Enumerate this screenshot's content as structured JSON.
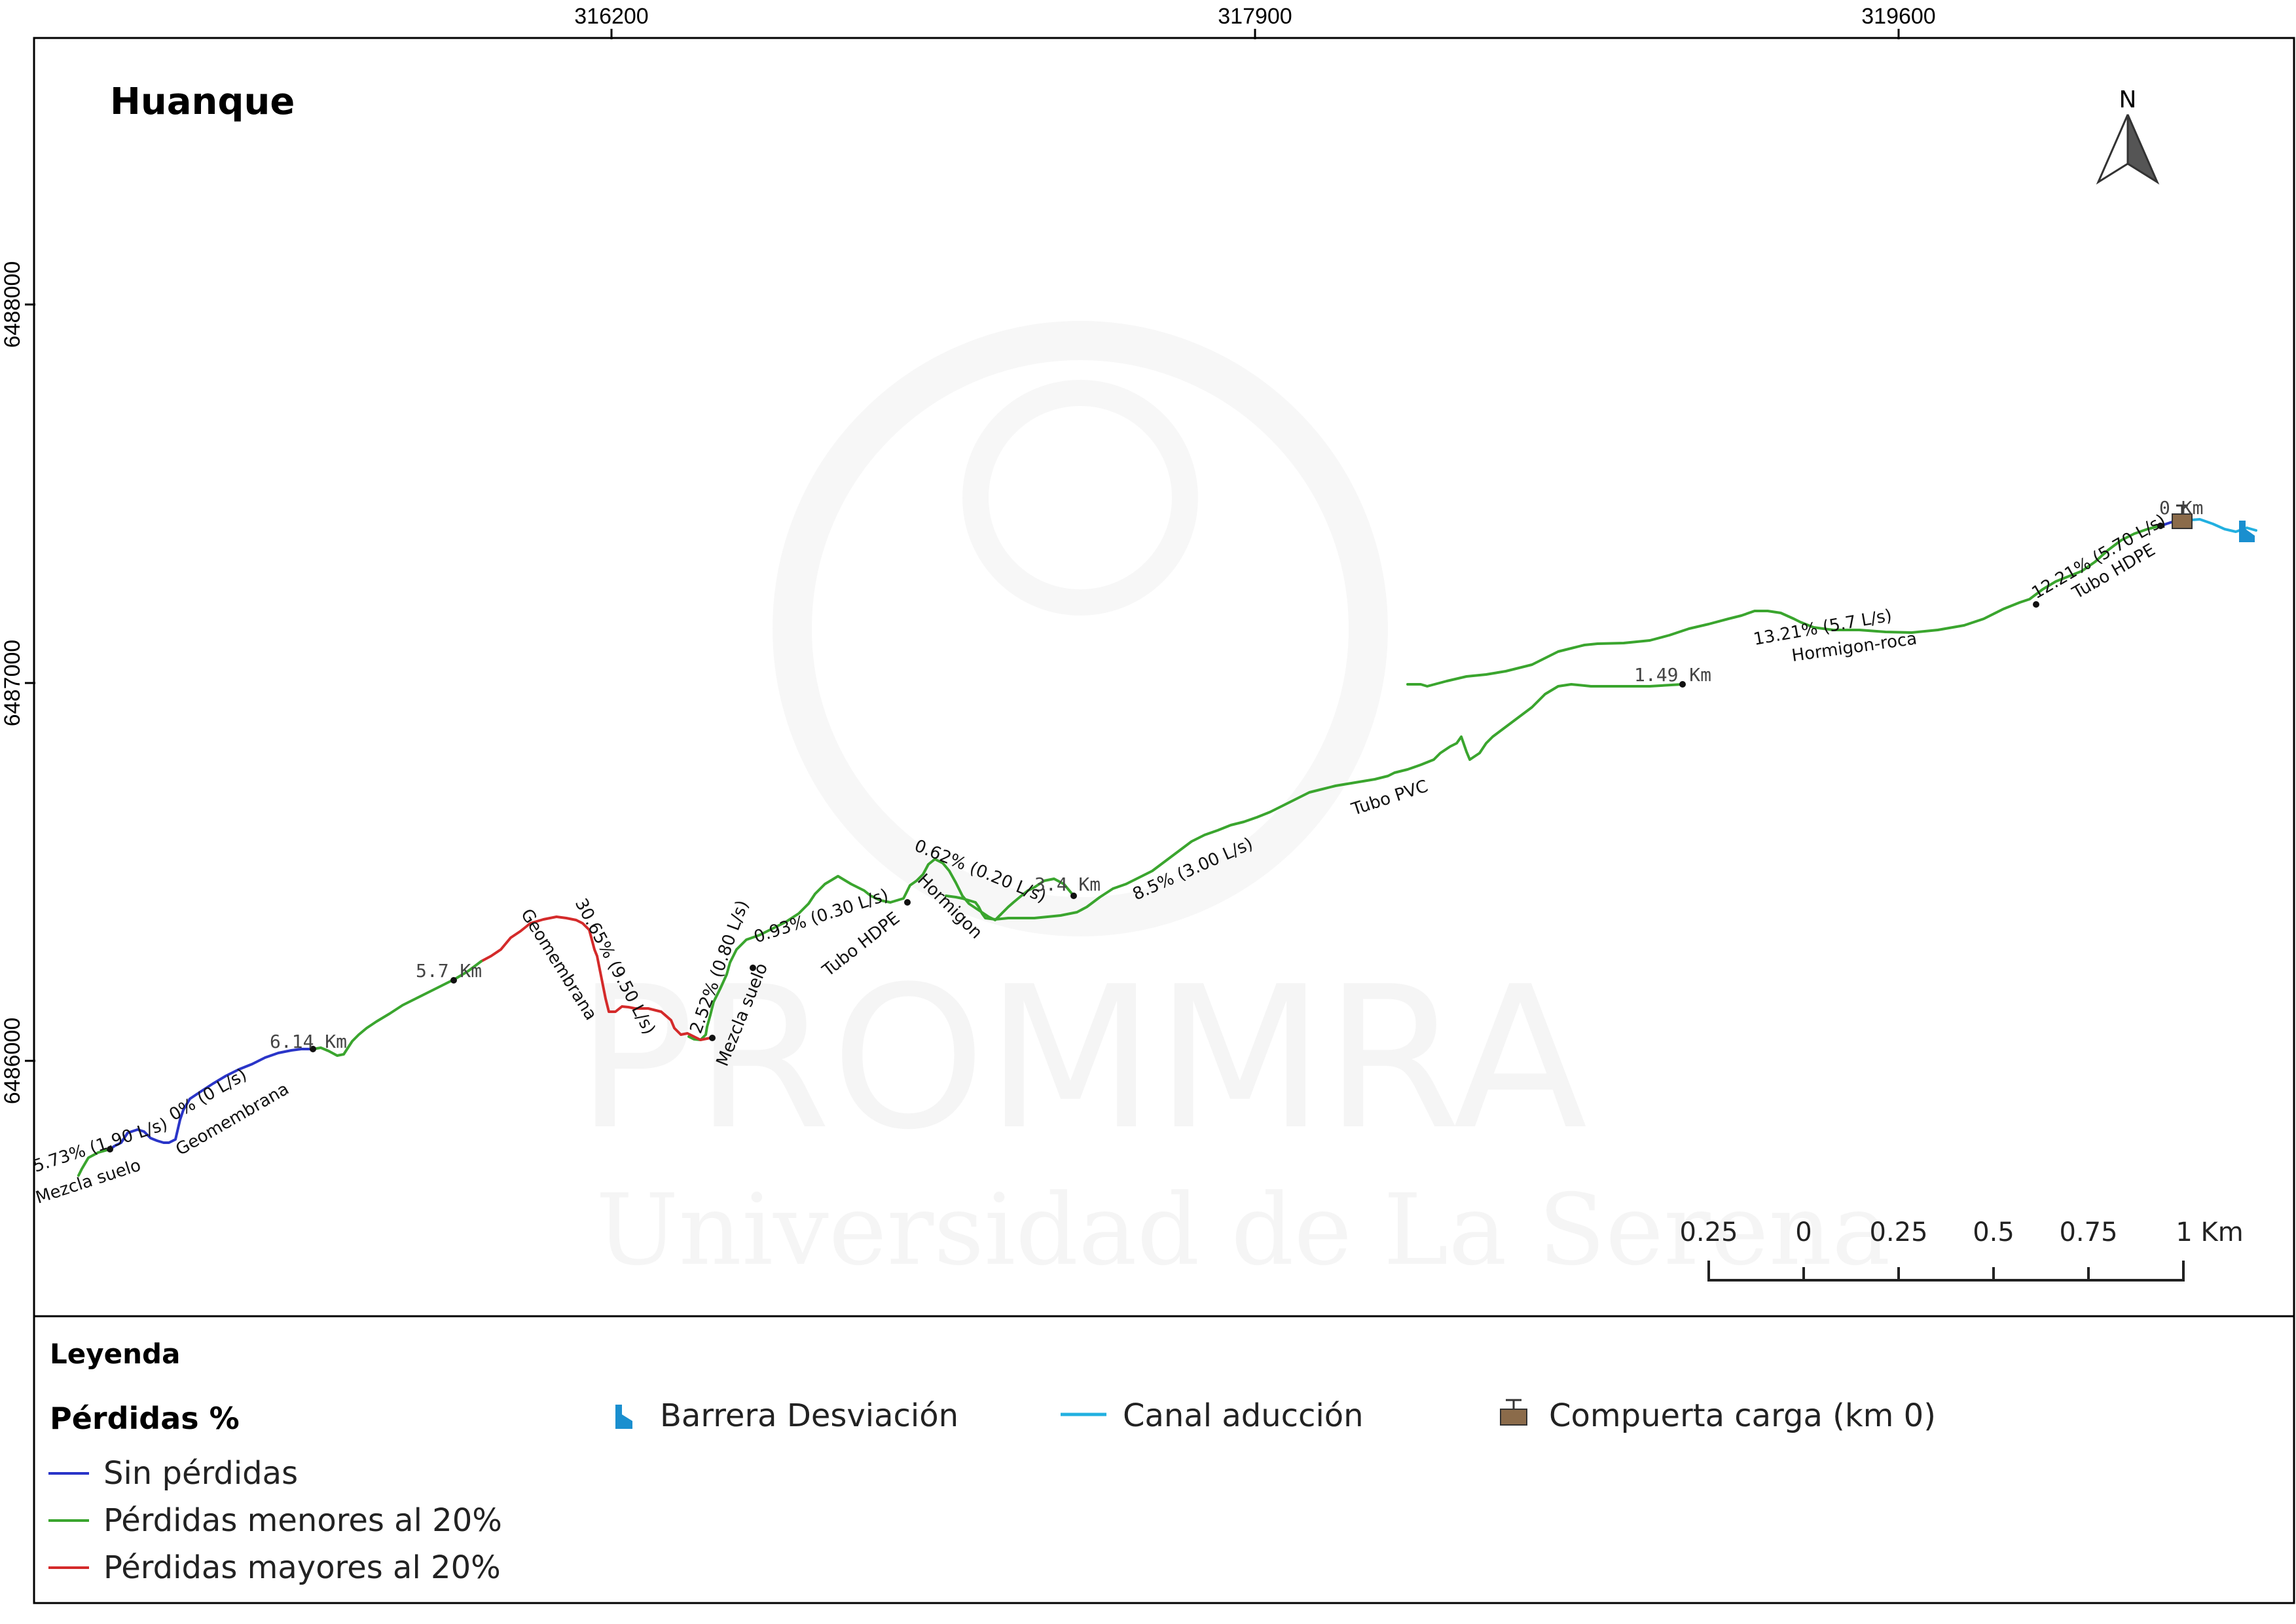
{
  "map": {
    "title": "Huanque",
    "north_label": "N",
    "coord_x_ticks": [
      "316200",
      "317900",
      "319600"
    ],
    "coord_y_ticks": [
      "6488000",
      "6487000",
      "6486000"
    ],
    "watermark": {
      "line1": "PROMMRA",
      "line2": "Universidad de La Serena"
    }
  },
  "km_labels": [
    "0 Km",
    "1.49 Km",
    "3.4 Km",
    "5.7 Km",
    "6.14 Km"
  ],
  "segment_labels": {
    "s1_loss": "12.21% (5.70 L/s)",
    "s1_material": "Tubo HDPE",
    "s2_loss": "13.21% (5.7 L/s)",
    "s2_material": "Hormigon-roca",
    "s3_material": "Tubo PVC",
    "s4_loss": "8.5% (3.00 L/s)",
    "s5_loss": "0.62% (0.20 L/s)",
    "s5_material": "Hormigon",
    "s6_loss": "0.93% (0.30 L/s)",
    "s6_material": "Tubo HDPE",
    "s7_loss": "2.52% (0.80 L/s)",
    "s7_material": "Mezcla suelo",
    "s8_loss": "30.65% (9.50 L/s)",
    "s8_material": "Geomembrana",
    "s9_loss": "0% (0 L/s)",
    "s9_material": "Geomembrana",
    "s10_loss": "5.73% (1.90 L/s)",
    "s10_material": "Mezcla suelo"
  },
  "scale_bar": {
    "labels": [
      "0.25",
      "0",
      "0.25",
      "0.5",
      "0.75",
      "1 Km"
    ]
  },
  "legend": {
    "title": "Leyenda",
    "losses_title": "Pérdidas %",
    "no_loss": "Sin pérdidas",
    "minor_loss": "Pérdidas menores al 20%",
    "major_loss": "Pérdidas mayores al 20%",
    "barrier": "Barrera Desviación",
    "canal": "Canal aducción",
    "gate": "Compuerta carga (km 0)"
  },
  "colors": {
    "no_loss": "#2a35c8",
    "minor_loss": "#3aa52e",
    "major_loss": "#d42a2a",
    "canal": "#22b0e0",
    "barrier": "#1a8fcf",
    "gate_fill": "#8b6b4a"
  }
}
